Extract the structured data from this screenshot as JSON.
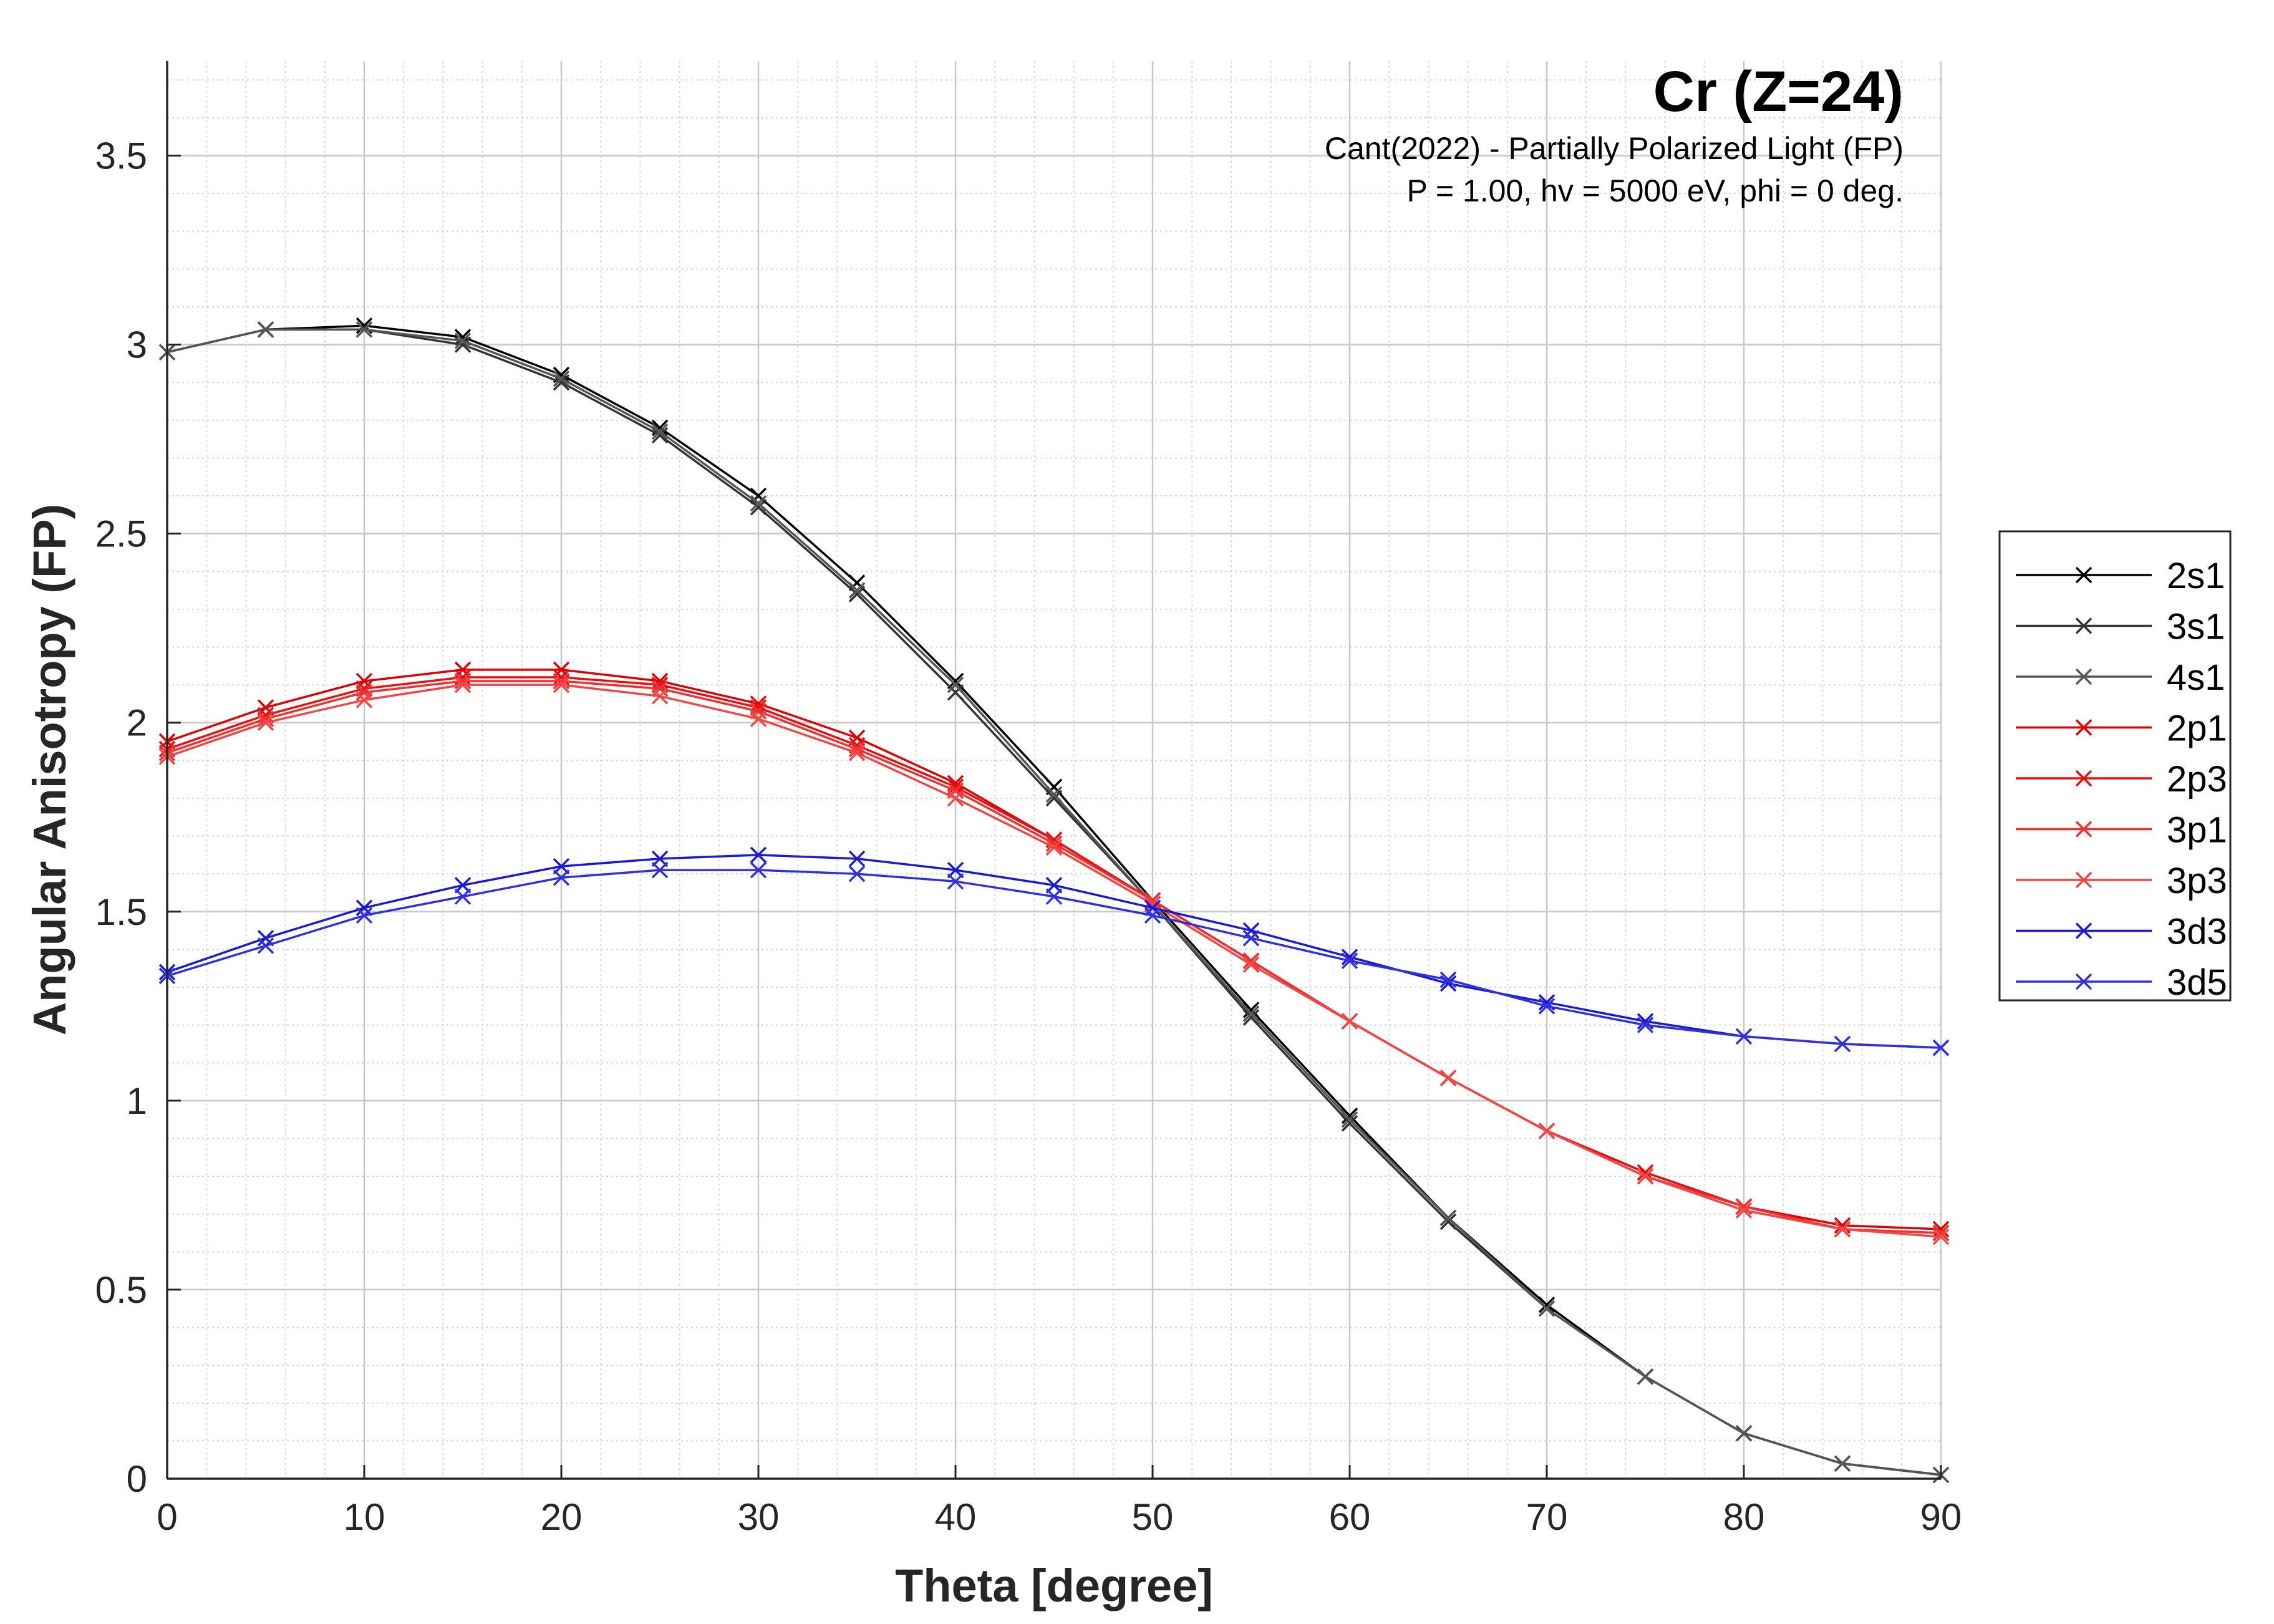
{
  "chart_data": {
    "type": "line",
    "title": "Cr (Z=24)",
    "subtitle_lines": [
      "Cant(2022) - Partially Polarized Light (FP)",
      "P = 1.00, hv = 5000 eV, phi = 0 deg."
    ],
    "xlabel": "Theta [degree]",
    "ylabel": "Angular Anisotropy (FP)",
    "xlim": [
      0,
      90
    ],
    "ylim": [
      0,
      3.75
    ],
    "xticks": [
      0,
      10,
      20,
      30,
      40,
      50,
      60,
      70,
      80,
      90
    ],
    "xtick_labels": [
      "0",
      "10",
      "20",
      "30",
      "40",
      "50",
      "60",
      "70",
      "80",
      "90"
    ],
    "yticks": [
      0,
      0.5,
      1,
      1.5,
      2,
      2.5,
      3,
      3.5
    ],
    "ytick_labels": [
      "0",
      "0.5",
      "1",
      "1.5",
      "2",
      "2.5",
      "3",
      "3.5"
    ],
    "grid": true,
    "minor_grid": true,
    "legend_position": "outside-right",
    "marker": "x",
    "x": [
      0,
      5,
      10,
      15,
      20,
      25,
      30,
      35,
      40,
      45,
      50,
      55,
      60,
      65,
      70,
      75,
      80,
      85,
      90
    ],
    "series": [
      {
        "name": "2s1",
        "color": "#000000",
        "values": [
          2.98,
          3.04,
          3.05,
          3.02,
          2.92,
          2.78,
          2.6,
          2.37,
          2.11,
          1.83,
          1.53,
          1.24,
          0.96,
          0.69,
          0.46,
          0.27,
          0.12,
          0.04,
          0.01
        ]
      },
      {
        "name": "3s1",
        "color": "#333333",
        "values": [
          2.98,
          3.04,
          3.04,
          3.0,
          2.9,
          2.76,
          2.57,
          2.34,
          2.08,
          1.8,
          1.52,
          1.22,
          0.94,
          0.68,
          0.45,
          0.27,
          0.12,
          0.04,
          0.01
        ]
      },
      {
        "name": "4s1",
        "color": "#555555",
        "values": [
          2.98,
          3.04,
          3.04,
          3.01,
          2.91,
          2.77,
          2.58,
          2.35,
          2.1,
          1.81,
          1.52,
          1.23,
          0.95,
          0.69,
          0.45,
          0.27,
          0.12,
          0.04,
          0.01
        ]
      },
      {
        "name": "2p1",
        "color": "#e00000",
        "values": [
          1.95,
          2.04,
          2.11,
          2.14,
          2.14,
          2.11,
          2.05,
          1.96,
          1.84,
          1.69,
          1.53,
          1.37,
          1.21,
          1.06,
          0.92,
          0.81,
          0.72,
          0.67,
          0.66
        ]
      },
      {
        "name": "2p3",
        "color": "#e61010",
        "values": [
          1.93,
          2.02,
          2.09,
          2.12,
          2.12,
          2.1,
          2.04,
          1.94,
          1.83,
          1.69,
          1.53,
          1.37,
          1.21,
          1.06,
          0.92,
          0.81,
          0.72,
          0.66,
          0.65
        ]
      },
      {
        "name": "3p1",
        "color": "#ee3030",
        "values": [
          1.92,
          2.01,
          2.08,
          2.11,
          2.11,
          2.09,
          2.03,
          1.93,
          1.82,
          1.68,
          1.53,
          1.37,
          1.21,
          1.06,
          0.92,
          0.8,
          0.72,
          0.66,
          0.65
        ]
      },
      {
        "name": "3p3",
        "color": "#f24545",
        "values": [
          1.91,
          2.0,
          2.06,
          2.1,
          2.1,
          2.07,
          2.01,
          1.92,
          1.8,
          1.67,
          1.52,
          1.36,
          1.21,
          1.06,
          0.92,
          0.8,
          0.71,
          0.66,
          0.64
        ]
      },
      {
        "name": "3d3",
        "color": "#1a1ad6",
        "values": [
          1.34,
          1.43,
          1.51,
          1.57,
          1.62,
          1.64,
          1.65,
          1.64,
          1.61,
          1.57,
          1.51,
          1.45,
          1.38,
          1.31,
          1.26,
          1.21,
          1.17,
          1.15,
          1.14
        ]
      },
      {
        "name": "3d5",
        "color": "#3030e0",
        "values": [
          1.33,
          1.41,
          1.49,
          1.54,
          1.59,
          1.61,
          1.61,
          1.6,
          1.58,
          1.54,
          1.49,
          1.43,
          1.37,
          1.32,
          1.25,
          1.2,
          1.17,
          1.15,
          1.14
        ]
      }
    ]
  }
}
